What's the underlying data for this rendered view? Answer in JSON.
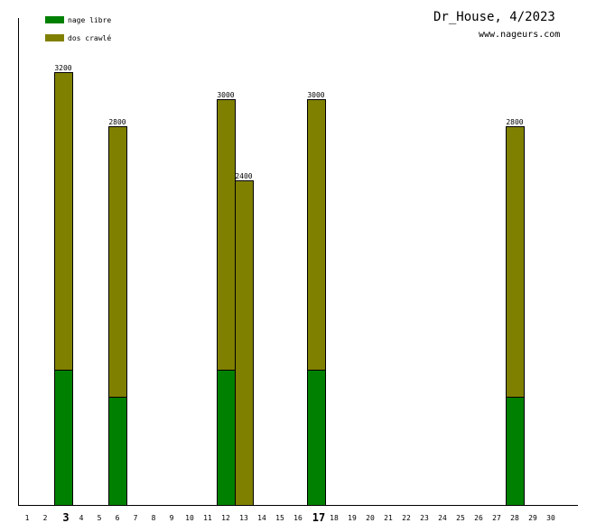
{
  "chart_data": {
    "type": "bar",
    "title": "Dr_House, 4/2023",
    "subtitle": "www.nageurs.com",
    "stacked": true,
    "categories": [
      "1",
      "2",
      "3",
      "4",
      "5",
      "6",
      "7",
      "8",
      "9",
      "10",
      "11",
      "12",
      "13",
      "14",
      "15",
      "16",
      "17",
      "18",
      "19",
      "20",
      "21",
      "22",
      "23",
      "24",
      "25",
      "26",
      "27",
      "28",
      "29",
      "30"
    ],
    "highlighted_categories": [
      "3",
      "17"
    ],
    "ylim": [
      0,
      3600
    ],
    "grid": false,
    "legend_position": "top-left",
    "series": [
      {
        "name": "nage libre",
        "color": "#008000",
        "values": [
          0,
          0,
          1000,
          0,
          0,
          800,
          0,
          0,
          0,
          0,
          0,
          1000,
          0,
          0,
          0,
          0,
          1000,
          0,
          0,
          0,
          0,
          0,
          0,
          0,
          0,
          0,
          0,
          800,
          0,
          0
        ]
      },
      {
        "name": "dos crawlé",
        "color": "#808000",
        "values": [
          0,
          0,
          2200,
          0,
          0,
          2000,
          0,
          0,
          0,
          0,
          0,
          2000,
          2400,
          0,
          0,
          0,
          2000,
          0,
          0,
          0,
          0,
          0,
          0,
          0,
          0,
          0,
          0,
          2000,
          0,
          0
        ]
      }
    ],
    "totals": [
      {
        "category": "3",
        "label": "3200"
      },
      {
        "category": "6",
        "label": "2800"
      },
      {
        "category": "12",
        "label": "3000"
      },
      {
        "category": "13",
        "label": "2400"
      },
      {
        "category": "17",
        "label": "3000"
      },
      {
        "category": "28",
        "label": "2800"
      }
    ]
  }
}
